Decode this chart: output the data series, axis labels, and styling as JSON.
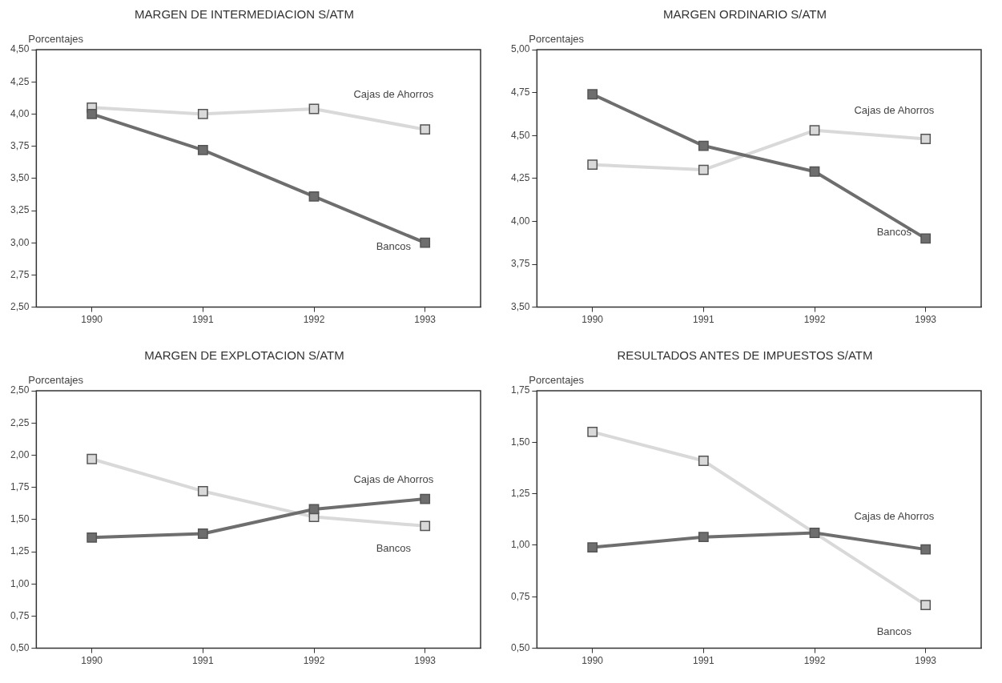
{
  "chart_data": [
    {
      "type": "line",
      "title": "MARGEN DE INTERMEDIACION S/ATM",
      "ylabel": "Porcentajes",
      "categories": [
        "1990",
        "1991",
        "1992",
        "1993"
      ],
      "marker": "square",
      "grid": false,
      "legend": false,
      "ylim": [
        2.5,
        4.5
      ],
      "yticks": [
        {
          "value": 2.5,
          "label": "2,50"
        },
        {
          "value": 2.75,
          "label": "2,75"
        },
        {
          "value": 3,
          "label": "3,00"
        },
        {
          "value": 3.25,
          "label": "3,25"
        },
        {
          "value": 3.5,
          "label": "3,50"
        },
        {
          "value": 3.75,
          "label": "3,75"
        },
        {
          "value": 4,
          "label": "4,00"
        },
        {
          "value": 4.25,
          "label": "4,25"
        },
        {
          "value": 4.5,
          "label": "4,50"
        }
      ],
      "series": [
        {
          "name": "Cajas de Ahorros",
          "color": "#d9d9d9",
          "values": [
            4.05,
            4.0,
            4.04,
            3.88
          ]
        },
        {
          "name": "Bancos",
          "color": "#6e6e6e",
          "values": [
            4.0,
            3.72,
            3.36,
            3.0
          ]
        }
      ]
    },
    {
      "type": "line",
      "title": "MARGEN ORDINARIO S/ATM",
      "ylabel": "Porcentajes",
      "categories": [
        "1990",
        "1991",
        "1992",
        "1993"
      ],
      "marker": "square",
      "grid": false,
      "legend": false,
      "ylim": [
        3.5,
        5.0
      ],
      "yticks": [
        {
          "value": 3.5,
          "label": "3,50"
        },
        {
          "value": 3.75,
          "label": "3,75"
        },
        {
          "value": 4,
          "label": "4,00"
        },
        {
          "value": 4.25,
          "label": "4,25"
        },
        {
          "value": 4.5,
          "label": "4,50"
        },
        {
          "value": 4.75,
          "label": "4,75"
        },
        {
          "value": 5,
          "label": "5,00"
        }
      ],
      "series": [
        {
          "name": "Cajas de Ahorros",
          "color": "#d9d9d9",
          "values": [
            4.33,
            4.3,
            4.53,
            4.48
          ]
        },
        {
          "name": "Bancos",
          "color": "#6e6e6e",
          "values": [
            4.74,
            4.44,
            4.29,
            3.9
          ]
        }
      ]
    },
    {
      "type": "line",
      "title": "MARGEN DE EXPLOTACION S/ATM",
      "ylabel": "Porcentajes",
      "categories": [
        "1990",
        "1991",
        "1992",
        "1993"
      ],
      "marker": "square",
      "grid": false,
      "legend": false,
      "ylim": [
        0.5,
        2.5
      ],
      "yticks": [
        {
          "value": 0.5,
          "label": "0,50"
        },
        {
          "value": 0.75,
          "label": "0,75"
        },
        {
          "value": 1,
          "label": "1,00"
        },
        {
          "value": 1.25,
          "label": "1,25"
        },
        {
          "value": 1.5,
          "label": "1,50"
        },
        {
          "value": 1.75,
          "label": "1,75"
        },
        {
          "value": 2,
          "label": "2,00"
        },
        {
          "value": 2.25,
          "label": "2,25"
        },
        {
          "value": 2.5,
          "label": "2,50"
        }
      ],
      "series": [
        {
          "name": "Bancos",
          "color": "#d9d9d9",
          "values": [
            1.97,
            1.72,
            1.52,
            1.45
          ]
        },
        {
          "name": "Cajas de Ahorros",
          "color": "#6e6e6e",
          "values": [
            1.36,
            1.39,
            1.58,
            1.66
          ]
        }
      ]
    },
    {
      "type": "line",
      "title": "RESULTADOS ANTES DE IMPUESTOS S/ATM",
      "ylabel": "Porcentajes",
      "categories": [
        "1990",
        "1991",
        "1992",
        "1993"
      ],
      "marker": "square",
      "grid": false,
      "legend": false,
      "ylim": [
        0.5,
        1.75
      ],
      "yticks": [
        {
          "value": 0.5,
          "label": "0,50"
        },
        {
          "value": 0.75,
          "label": "0,75"
        },
        {
          "value": 1,
          "label": "1,00"
        },
        {
          "value": 1.25,
          "label": "1,25"
        },
        {
          "value": 1.5,
          "label": "1,50"
        },
        {
          "value": 1.75,
          "label": "1,75"
        }
      ],
      "series": [
        {
          "name": "Bancos",
          "color": "#d9d9d9",
          "values": [
            1.55,
            1.41,
            null,
            0.71
          ]
        },
        {
          "name": "Cajas de Ahorros",
          "color": "#6e6e6e",
          "values": [
            0.99,
            1.04,
            1.06,
            0.98
          ]
        }
      ]
    }
  ]
}
